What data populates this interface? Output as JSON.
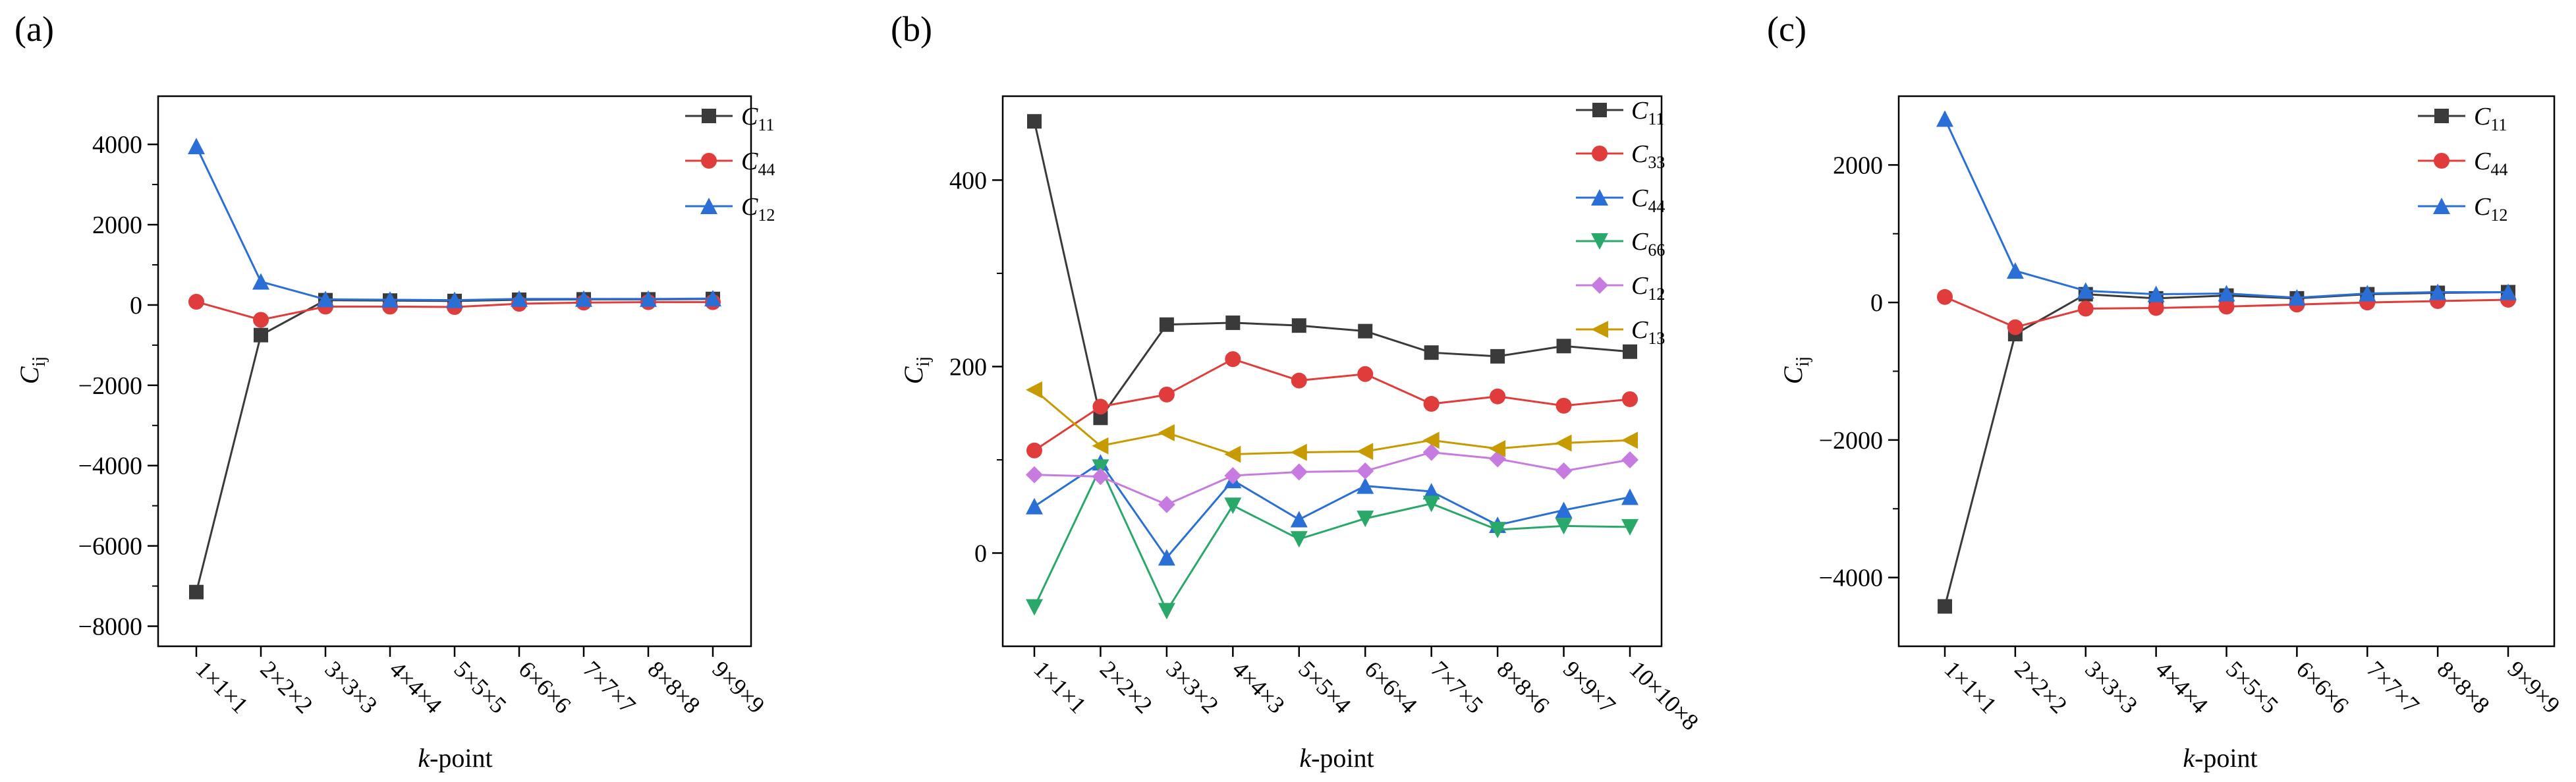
{
  "chart_data": [
    {
      "panel_label": "(a)",
      "type": "line",
      "categories": [
        "1×1×1",
        "2×2×2",
        "3×3×3",
        "4×4×4",
        "5×5×5",
        "6×6×6",
        "7×7×7",
        "8×8×8",
        "9×9×9"
      ],
      "xlabel_italic": "k",
      "xlabel_rest": "-point",
      "ylabel_main": "C",
      "ylabel_sub": "ij",
      "ylim": [
        -8500,
        5200
      ],
      "yticks": [
        -8000,
        -6000,
        -4000,
        -2000,
        0,
        2000,
        4000
      ],
      "ytick_labels": [
        "−8000",
        "−6000",
        "−4000",
        "−2000",
        "0",
        "2000",
        "4000"
      ],
      "legend_position": "top-right",
      "series": [
        {
          "name_main": "C",
          "name_sub": "11",
          "color": "#3a3a3a",
          "marker": "square",
          "values": [
            -7150,
            -750,
            120,
            110,
            100,
            130,
            140,
            140,
            150
          ]
        },
        {
          "name_main": "C",
          "name_sub": "44",
          "color": "#e03c3c",
          "marker": "circle",
          "values": [
            80,
            -370,
            -40,
            -40,
            -50,
            30,
            60,
            70,
            70
          ]
        },
        {
          "name_main": "C",
          "name_sub": "12",
          "color": "#2a6fd6",
          "marker": "triangle-up",
          "values": [
            3950,
            580,
            140,
            130,
            120,
            150,
            150,
            150,
            160
          ]
        }
      ]
    },
    {
      "panel_label": "(b)",
      "type": "line",
      "categories": [
        "1×1×1",
        "2×2×2",
        "3×3×2",
        "4×4×3",
        "5×5×4",
        "6×6×4",
        "7×7×5",
        "8×8×6",
        "9×9×7",
        "10×10×8"
      ],
      "xlabel_italic": "k",
      "xlabel_rest": "-point",
      "ylabel_main": "C",
      "ylabel_sub": "ij",
      "ylim": [
        -100,
        490
      ],
      "yticks": [
        0,
        200,
        400
      ],
      "ytick_labels": [
        "0",
        "200",
        "400"
      ],
      "legend_position": "top-right",
      "series": [
        {
          "name_main": "C",
          "name_sub": "11",
          "color": "#3a3a3a",
          "marker": "square",
          "values": [
            463,
            145,
            245,
            247,
            244,
            238,
            215,
            211,
            222,
            216
          ]
        },
        {
          "name_main": "C",
          "name_sub": "33",
          "color": "#e03c3c",
          "marker": "circle",
          "values": [
            110,
            157,
            170,
            208,
            185,
            192,
            160,
            168,
            158,
            165
          ]
        },
        {
          "name_main": "C",
          "name_sub": "44",
          "color": "#2a6fd6",
          "marker": "triangle-up",
          "values": [
            50,
            97,
            -5,
            78,
            36,
            72,
            66,
            30,
            46,
            60
          ]
        },
        {
          "name_main": "C",
          "name_sub": "66",
          "color": "#2aa86a",
          "marker": "triangle-down",
          "values": [
            -58,
            92,
            -62,
            51,
            15,
            37,
            53,
            25,
            29,
            28
          ]
        },
        {
          "name_main": "C",
          "name_sub": "12",
          "color": "#c77be0",
          "marker": "diamond",
          "values": [
            84,
            82,
            52,
            83,
            87,
            88,
            108,
            101,
            88,
            100
          ]
        },
        {
          "name_main": "C",
          "name_sub": "13",
          "color": "#c79a00",
          "marker": "triangle-left",
          "values": [
            175,
            115,
            129,
            106,
            108,
            109,
            121,
            112,
            118,
            121
          ]
        }
      ]
    },
    {
      "panel_label": "(c)",
      "type": "line",
      "categories": [
        "1×1×1",
        "2×2×2",
        "3×3×3",
        "4×4×4",
        "5×5×5",
        "6×6×6",
        "7×7×7",
        "8×8×8",
        "9×9×9"
      ],
      "xlabel_italic": "k",
      "xlabel_rest": "-point",
      "ylabel_main": "C",
      "ylabel_sub": "ij",
      "ylim": [
        -5000,
        3000
      ],
      "yticks": [
        -4000,
        -2000,
        0,
        2000
      ],
      "ytick_labels": [
        "−4000",
        "−2000",
        "0",
        "2000"
      ],
      "legend_position": "top-right",
      "series": [
        {
          "name_main": "C",
          "name_sub": "11",
          "color": "#3a3a3a",
          "marker": "square",
          "values": [
            -4420,
            -460,
            120,
            60,
            100,
            60,
            120,
            140,
            150
          ]
        },
        {
          "name_main": "C",
          "name_sub": "44",
          "color": "#e03c3c",
          "marker": "circle",
          "values": [
            80,
            -360,
            -90,
            -80,
            -60,
            -30,
            0,
            20,
            40
          ]
        },
        {
          "name_main": "C",
          "name_sub": "12",
          "color": "#2a6fd6",
          "marker": "triangle-up",
          "values": [
            2670,
            460,
            170,
            120,
            130,
            70,
            130,
            150,
            150
          ]
        }
      ]
    }
  ]
}
